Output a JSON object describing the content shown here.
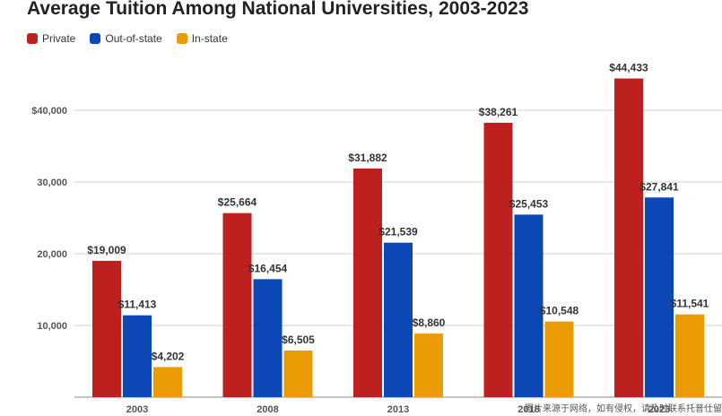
{
  "chart_data": {
    "type": "bar",
    "title": "Average Tuition Among National Universities, 2003-2023",
    "xlabel": "",
    "ylabel": "",
    "ylim": [
      0,
      50000
    ],
    "grid": true,
    "legend_position": "top-left",
    "categories": [
      "2003",
      "2008",
      "2013",
      "2018",
      "2023"
    ],
    "y_ticks": [
      {
        "value": 10000,
        "label": "10,000"
      },
      {
        "value": 20000,
        "label": "20,000"
      },
      {
        "value": 30000,
        "label": "30,000"
      },
      {
        "value": 40000,
        "label": "$40,000"
      }
    ],
    "series": [
      {
        "name": "Private",
        "color": "#bc2120",
        "values": [
          19009,
          25664,
          31882,
          38261,
          44433
        ],
        "labels": [
          "$19,009",
          "$25,664",
          "$31,882",
          "$38,261",
          "$44,433"
        ]
      },
      {
        "name": "Out-of-state",
        "color": "#0b47b5",
        "values": [
          11413,
          16454,
          21539,
          25453,
          27841
        ],
        "labels": [
          "$11,413",
          "$16,454",
          "$21,539",
          "$25,453",
          "$27,841"
        ]
      },
      {
        "name": "In-state",
        "color": "#eb9c05",
        "values": [
          4202,
          6505,
          8860,
          10548,
          11541
        ],
        "labels": [
          "$4,202",
          "$6,505",
          "$8,860",
          "$10,548",
          "$11,541"
        ]
      }
    ]
  },
  "watermark": "图片来源于网络，如有侵权，请及时联系托普仕留学删除"
}
